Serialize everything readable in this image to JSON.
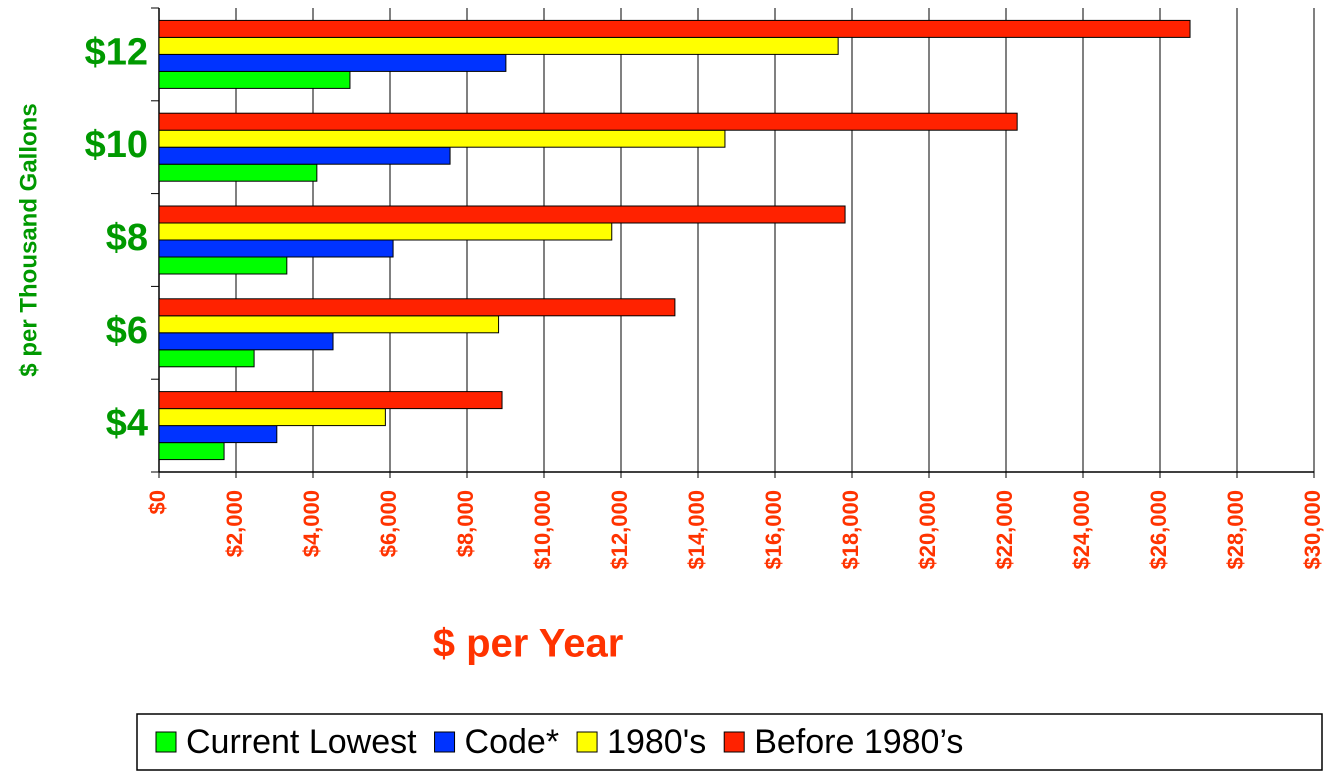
{
  "chart_data": {
    "type": "hbar",
    "xlabel": "$ per Year",
    "ylabel": "$ per Thousand Gallons",
    "categories": [
      "$4",
      "$6",
      "$8",
      "$10",
      "$12"
    ],
    "series": [
      {
        "name": "Current Lowest",
        "color": "#00ff00",
        "values": [
          1690,
          2470,
          3320,
          4100,
          4960
        ]
      },
      {
        "name": "Code*",
        "color": "#0033ff",
        "values": [
          3060,
          4520,
          6080,
          7560,
          9010
        ]
      },
      {
        "name": "1980's",
        "color": "#ffff00",
        "values": [
          5880,
          8820,
          11760,
          14700,
          17640
        ]
      },
      {
        "name": "Before 1980’s",
        "color": "#ff2200",
        "values": [
          8910,
          13400,
          17820,
          22290,
          26780
        ]
      }
    ],
    "xlim": [
      0,
      30000
    ],
    "xticks": [
      0,
      {
        "value": 2000,
        "label": "$2,000"
      },
      {
        "value": 4000,
        "label": "$4,000"
      },
      {
        "value": 6000,
        "label": "$6,000"
      },
      {
        "value": 8000,
        "label": "$8,000"
      },
      {
        "value": 10000,
        "label": "$10,000"
      },
      {
        "value": 12000,
        "label": "$12,000"
      },
      {
        "value": 14000,
        "label": "$14,000"
      },
      {
        "value": 16000,
        "label": "$16,000"
      },
      {
        "value": 18000,
        "label": "$18,000"
      },
      {
        "value": 20000,
        "label": "$20,000"
      },
      {
        "value": 22000,
        "label": "$22,000"
      },
      {
        "value": 24000,
        "label": "$24,000"
      },
      {
        "value": 26000,
        "label": "$26,000"
      },
      {
        "value": 28000,
        "label": "$28,000"
      },
      {
        "value": 30000,
        "label": "$30,000"
      }
    ],
    "x_tick_zero_label": "$0",
    "grid": true,
    "legend": "bottom"
  }
}
